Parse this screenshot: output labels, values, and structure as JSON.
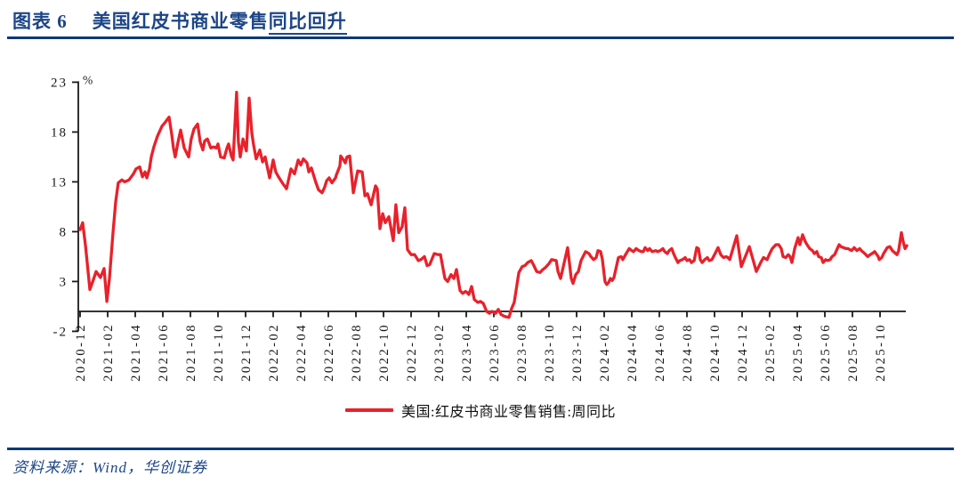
{
  "header": {
    "figure_label": "图表 6",
    "title_plain": "美国红皮书商业零售",
    "title_underlined": "同比回升"
  },
  "source": {
    "text": "资料来源：Wind，华创证券"
  },
  "colors": {
    "accent_navy": "#0e3a74",
    "title_navy": "#1c4587",
    "line_red": "#e8212b",
    "axis_black": "#1a1a1a"
  },
  "chart_data": {
    "type": "line",
    "title": "美国红皮书商业零售同比回升",
    "unit_label": "%",
    "ylabel": "%",
    "xlabel": "",
    "ylim": [
      -2,
      23
    ],
    "y_ticks": [
      23,
      18,
      13,
      8,
      3,
      -2
    ],
    "grid": false,
    "legend_position": "bottom-center",
    "x_tick_interval_months": 2,
    "x_range_months": [
      0,
      60
    ],
    "x_tick_labels": [
      "2020-12",
      "2021-02",
      "2021-04",
      "2021-06",
      "2021-08",
      "2021-10",
      "2021-12",
      "2022-02",
      "2022-04",
      "2022-06",
      "2022-08",
      "2022-10",
      "2022-12",
      "2023-02",
      "2023-04",
      "2023-06",
      "2023-08",
      "2023-10",
      "2023-12",
      "2024-02",
      "2024-04",
      "2024-06",
      "2024-08",
      "2024-10",
      "2024-12",
      "2025-02",
      "2025-04",
      "2025-06",
      "2025-08",
      "2025-10"
    ],
    "series": [
      {
        "name": "美国:红皮书商业零售销售:周同比",
        "color": "#e8212b",
        "x_unit": "months_since_2020-12",
        "points": [
          [
            0,
            8.2
          ],
          [
            0.19,
            8.9
          ],
          [
            0.4,
            6.5
          ],
          [
            0.71,
            2.2
          ],
          [
            0.97,
            3.2
          ],
          [
            1.16,
            4.0
          ],
          [
            1.48,
            3.4
          ],
          [
            1.74,
            4.3
          ],
          [
            1.94,
            1.0
          ],
          [
            2.13,
            3.3
          ],
          [
            2.39,
            7.9
          ],
          [
            2.58,
            11.0
          ],
          [
            2.77,
            12.9
          ],
          [
            3.03,
            13.2
          ],
          [
            3.23,
            13.0
          ],
          [
            3.55,
            13.2
          ],
          [
            3.87,
            13.8
          ],
          [
            4.06,
            14.3
          ],
          [
            4.32,
            14.5
          ],
          [
            4.52,
            13.5
          ],
          [
            4.71,
            14.0
          ],
          [
            4.84,
            13.4
          ],
          [
            5.03,
            14.3
          ],
          [
            5.16,
            15.5
          ],
          [
            5.35,
            16.5
          ],
          [
            5.61,
            17.6
          ],
          [
            5.94,
            18.6
          ],
          [
            6.13,
            18.9
          ],
          [
            6.45,
            19.5
          ],
          [
            6.65,
            17.7
          ],
          [
            6.77,
            16.4
          ],
          [
            6.9,
            15.5
          ],
          [
            7.1,
            17.0
          ],
          [
            7.29,
            18.2
          ],
          [
            7.55,
            16.4
          ],
          [
            7.87,
            15.5
          ],
          [
            8.06,
            17.3
          ],
          [
            8.26,
            18.3
          ],
          [
            8.52,
            18.8
          ],
          [
            8.71,
            17.0
          ],
          [
            8.9,
            16.2
          ],
          [
            9.03,
            17.1
          ],
          [
            9.23,
            17.3
          ],
          [
            9.48,
            16.4
          ],
          [
            9.68,
            16.5
          ],
          [
            9.87,
            16.4
          ],
          [
            10.0,
            16.8
          ],
          [
            10.19,
            15.5
          ],
          [
            10.45,
            15.4
          ],
          [
            10.65,
            16.4
          ],
          [
            10.77,
            16.8
          ],
          [
            10.97,
            15.6
          ],
          [
            11.1,
            15.2
          ],
          [
            11.35,
            22.0
          ],
          [
            11.48,
            17.0
          ],
          [
            11.61,
            15.5
          ],
          [
            11.81,
            17.3
          ],
          [
            12.06,
            16.1
          ],
          [
            12.26,
            21.4
          ],
          [
            12.45,
            17.9
          ],
          [
            12.58,
            16.7
          ],
          [
            12.77,
            15.3
          ],
          [
            13.03,
            16.2
          ],
          [
            13.23,
            15.0
          ],
          [
            13.42,
            15.5
          ],
          [
            13.74,
            13.4
          ],
          [
            14.0,
            15.2
          ],
          [
            14.19,
            14.0
          ],
          [
            14.39,
            13.5
          ],
          [
            14.71,
            12.8
          ],
          [
            14.97,
            12.3
          ],
          [
            15.29,
            14.3
          ],
          [
            15.55,
            13.8
          ],
          [
            15.81,
            15.2
          ],
          [
            16.0,
            14.7
          ],
          [
            16.19,
            15.3
          ],
          [
            16.45,
            14.9
          ],
          [
            16.58,
            14.0
          ],
          [
            16.77,
            14.4
          ],
          [
            17.1,
            12.9
          ],
          [
            17.29,
            12.2
          ],
          [
            17.55,
            11.9
          ],
          [
            17.74,
            12.5
          ],
          [
            17.87,
            13.1
          ],
          [
            18.06,
            13.4
          ],
          [
            18.26,
            12.9
          ],
          [
            18.52,
            13.4
          ],
          [
            18.58,
            13.7
          ],
          [
            18.84,
            14.6
          ],
          [
            18.9,
            15.6
          ],
          [
            19.1,
            15.2
          ],
          [
            19.23,
            14.9
          ],
          [
            19.35,
            15.5
          ],
          [
            19.55,
            15.6
          ],
          [
            19.81,
            11.9
          ],
          [
            20.13,
            14.1
          ],
          [
            20.45,
            14.0
          ],
          [
            20.65,
            11.6
          ],
          [
            20.84,
            11.8
          ],
          [
            21.1,
            10.7
          ],
          [
            21.42,
            12.6
          ],
          [
            21.55,
            12.3
          ],
          [
            21.74,
            8.3
          ],
          [
            21.94,
            9.8
          ],
          [
            22.13,
            8.9
          ],
          [
            22.39,
            9.5
          ],
          [
            22.71,
            7.1
          ],
          [
            22.9,
            10.7
          ],
          [
            23.1,
            7.9
          ],
          [
            23.35,
            8.5
          ],
          [
            23.55,
            10.4
          ],
          [
            23.74,
            6.2
          ],
          [
            24.0,
            5.7
          ],
          [
            24.26,
            5.7
          ],
          [
            24.52,
            5.1
          ],
          [
            24.71,
            5.2
          ],
          [
            24.97,
            5.5
          ],
          [
            25.16,
            4.6
          ],
          [
            25.35,
            4.7
          ],
          [
            25.68,
            5.8
          ],
          [
            25.94,
            5.7
          ],
          [
            26.13,
            5.7
          ],
          [
            26.45,
            3.3
          ],
          [
            26.65,
            3.0
          ],
          [
            26.9,
            3.7
          ],
          [
            27.1,
            3.3
          ],
          [
            27.29,
            4.2
          ],
          [
            27.55,
            2.1
          ],
          [
            27.74,
            1.8
          ],
          [
            27.94,
            2.0
          ],
          [
            28.06,
            1.9
          ],
          [
            28.19,
            1.7
          ],
          [
            28.39,
            2.5
          ],
          [
            28.58,
            1.2
          ],
          [
            28.84,
            0.9
          ],
          [
            29.03,
            1.0
          ],
          [
            29.23,
            0.8
          ],
          [
            29.48,
            0.0
          ],
          [
            29.68,
            -0.2
          ],
          [
            29.87,
            0.0
          ],
          [
            30.13,
            -0.2
          ],
          [
            30.32,
            0.2
          ],
          [
            30.52,
            -0.3
          ],
          [
            30.77,
            -0.5
          ],
          [
            31.1,
            -0.6
          ],
          [
            31.29,
            0.3
          ],
          [
            31.48,
            0.9
          ],
          [
            31.81,
            3.9
          ],
          [
            32.06,
            4.5
          ],
          [
            32.26,
            4.6
          ],
          [
            32.45,
            4.9
          ],
          [
            32.71,
            5.1
          ],
          [
            32.9,
            4.6
          ],
          [
            33.1,
            4.0
          ],
          [
            33.35,
            3.9
          ],
          [
            33.55,
            4.2
          ],
          [
            33.74,
            4.4
          ],
          [
            34.0,
            4.8
          ],
          [
            34.19,
            5.2
          ],
          [
            34.52,
            5.1
          ],
          [
            34.65,
            4.0
          ],
          [
            34.84,
            3.3
          ],
          [
            35.35,
            6.4
          ],
          [
            35.61,
            3.3
          ],
          [
            35.74,
            2.8
          ],
          [
            35.94,
            3.7
          ],
          [
            36.13,
            4.0
          ],
          [
            36.32,
            5.1
          ],
          [
            36.65,
            6.0
          ],
          [
            36.9,
            5.8
          ],
          [
            37.03,
            5.5
          ],
          [
            37.23,
            5.2
          ],
          [
            37.42,
            5.4
          ],
          [
            37.55,
            6.1
          ],
          [
            37.74,
            6.0
          ],
          [
            37.87,
            5.2
          ],
          [
            38.06,
            3.0
          ],
          [
            38.19,
            2.7
          ],
          [
            38.32,
            2.9
          ],
          [
            38.45,
            3.3
          ],
          [
            38.58,
            3.1
          ],
          [
            38.71,
            3.4
          ],
          [
            39.03,
            5.4
          ],
          [
            39.23,
            5.5
          ],
          [
            39.35,
            5.2
          ],
          [
            39.55,
            5.7
          ],
          [
            39.81,
            6.3
          ],
          [
            40.0,
            6.1
          ],
          [
            40.13,
            6.0
          ],
          [
            40.32,
            6.3
          ],
          [
            40.52,
            6.1
          ],
          [
            40.71,
            6.0
          ],
          [
            40.84,
            6.0
          ],
          [
            40.97,
            6.4
          ],
          [
            41.16,
            6.1
          ],
          [
            41.29,
            6.3
          ],
          [
            41.48,
            6.0
          ],
          [
            41.74,
            6.1
          ],
          [
            41.87,
            6.0
          ],
          [
            42.06,
            6.1
          ],
          [
            42.26,
            6.3
          ],
          [
            42.39,
            6.0
          ],
          [
            42.58,
            5.8
          ],
          [
            42.71,
            6.1
          ],
          [
            42.9,
            6.3
          ],
          [
            43.03,
            5.8
          ],
          [
            43.16,
            5.4
          ],
          [
            43.35,
            4.9
          ],
          [
            43.48,
            5.1
          ],
          [
            43.68,
            5.2
          ],
          [
            43.87,
            5.4
          ],
          [
            44.0,
            5.1
          ],
          [
            44.19,
            5.2
          ],
          [
            44.32,
            4.9
          ],
          [
            44.52,
            5.1
          ],
          [
            44.71,
            6.4
          ],
          [
            44.84,
            6.3
          ],
          [
            44.97,
            5.2
          ],
          [
            45.1,
            4.9
          ],
          [
            45.29,
            5.2
          ],
          [
            45.48,
            5.4
          ],
          [
            45.61,
            5.1
          ],
          [
            45.81,
            5.2
          ],
          [
            46.0,
            5.7
          ],
          [
            46.26,
            6.4
          ],
          [
            46.45,
            5.7
          ],
          [
            46.65,
            5.4
          ],
          [
            46.84,
            5.5
          ],
          [
            46.97,
            5.4
          ],
          [
            47.1,
            5.2
          ],
          [
            47.61,
            7.6
          ],
          [
            47.94,
            4.5
          ],
          [
            48.52,
            6.5
          ],
          [
            49.03,
            4.0
          ],
          [
            49.35,
            4.9
          ],
          [
            49.55,
            5.4
          ],
          [
            49.81,
            5.2
          ],
          [
            50.0,
            5.8
          ],
          [
            50.19,
            6.3
          ],
          [
            50.45,
            6.7
          ],
          [
            50.65,
            6.7
          ],
          [
            50.84,
            6.3
          ],
          [
            50.97,
            5.5
          ],
          [
            51.16,
            5.4
          ],
          [
            51.35,
            5.7
          ],
          [
            51.48,
            5.5
          ],
          [
            51.61,
            4.9
          ],
          [
            51.81,
            6.3
          ],
          [
            52.06,
            7.4
          ],
          [
            52.19,
            6.7
          ],
          [
            52.39,
            7.7
          ],
          [
            52.58,
            7.0
          ],
          [
            52.71,
            6.7
          ],
          [
            52.9,
            6.3
          ],
          [
            53.1,
            6.1
          ],
          [
            53.23,
            5.8
          ],
          [
            53.42,
            6.0
          ],
          [
            53.55,
            5.5
          ],
          [
            53.74,
            5.4
          ],
          [
            53.87,
            4.9
          ],
          [
            54.06,
            5.2
          ],
          [
            54.19,
            5.1
          ],
          [
            54.39,
            5.2
          ],
          [
            54.52,
            5.5
          ],
          [
            54.71,
            5.7
          ],
          [
            54.84,
            6.1
          ],
          [
            55.03,
            6.7
          ],
          [
            55.16,
            6.5
          ],
          [
            55.35,
            6.4
          ],
          [
            55.55,
            6.3
          ],
          [
            55.68,
            6.3
          ],
          [
            55.94,
            6.1
          ],
          [
            56.13,
            6.4
          ],
          [
            56.32,
            6.1
          ],
          [
            56.52,
            6.3
          ],
          [
            56.65,
            6.1
          ],
          [
            56.9,
            5.8
          ],
          [
            57.1,
            5.5
          ],
          [
            57.29,
            5.7
          ],
          [
            57.42,
            5.8
          ],
          [
            57.61,
            6.0
          ],
          [
            57.87,
            5.5
          ],
          [
            57.94,
            5.2
          ],
          [
            58.13,
            5.4
          ],
          [
            58.26,
            5.8
          ],
          [
            58.52,
            6.4
          ],
          [
            58.71,
            6.5
          ],
          [
            58.9,
            6.1
          ],
          [
            59.23,
            5.7
          ],
          [
            59.35,
            6.1
          ],
          [
            59.55,
            7.9
          ],
          [
            59.68,
            7.0
          ],
          [
            59.81,
            6.3
          ],
          [
            59.94,
            6.6
          ]
        ]
      }
    ]
  }
}
